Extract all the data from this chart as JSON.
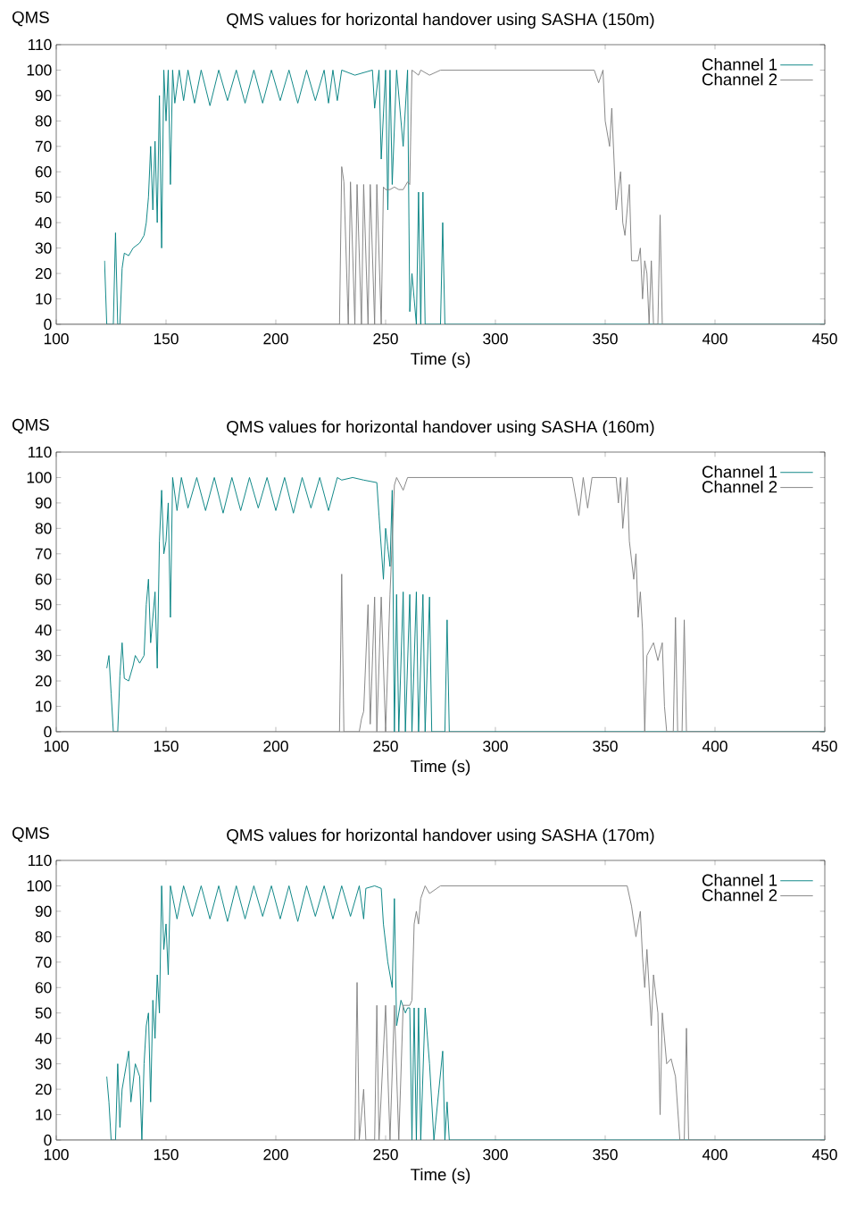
{
  "chart_data": [
    {
      "type": "line",
      "title": "QMS values for horizontal handover using SASHA (150m)",
      "xlabel": "Time (s)",
      "ylabel": "QMS",
      "xlim": [
        100,
        450
      ],
      "ylim": [
        0,
        110
      ],
      "xticks": [
        100,
        150,
        200,
        250,
        300,
        350,
        400,
        450
      ],
      "yticks": [
        0,
        10,
        20,
        30,
        40,
        50,
        60,
        70,
        80,
        90,
        100,
        110
      ],
      "legend": "top right",
      "series": [
        {
          "name": "Channel 1",
          "color": "#008080",
          "x": [
            122,
            123,
            126,
            127,
            128,
            129,
            130,
            131,
            133,
            135,
            138,
            140,
            141,
            142,
            143,
            144,
            145,
            146,
            147,
            148,
            149,
            150,
            151,
            152,
            153,
            154,
            156,
            158,
            160,
            163,
            166,
            170,
            174,
            178,
            182,
            186,
            190,
            194,
            198,
            202,
            206,
            210,
            214,
            218,
            222,
            224,
            226,
            228,
            230,
            233,
            236,
            240,
            244,
            245,
            247,
            248,
            250,
            251,
            252,
            253,
            255,
            258,
            260,
            261,
            262,
            263,
            264,
            265,
            266,
            267,
            268,
            275,
            276,
            277,
            450
          ],
          "values": [
            25,
            0,
            0,
            36,
            0,
            0,
            22,
            28,
            27,
            30,
            32,
            35,
            40,
            50,
            70,
            45,
            72,
            40,
            90,
            30,
            100,
            80,
            100,
            55,
            100,
            87,
            100,
            88,
            100,
            87,
            100,
            86,
            100,
            88,
            100,
            87,
            100,
            87,
            100,
            88,
            100,
            87,
            100,
            88,
            100,
            87,
            100,
            88,
            100,
            99,
            98,
            99,
            100,
            85,
            100,
            65,
            100,
            45,
            100,
            55,
            100,
            70,
            100,
            5,
            20,
            10,
            0,
            52,
            0,
            52,
            0,
            0,
            40,
            0,
            0
          ]
        },
        {
          "name": "Channel 2",
          "color": "#808080",
          "x": [
            100,
            229,
            230,
            231,
            233,
            234,
            236,
            237,
            239,
            240,
            242,
            243,
            245,
            246,
            248,
            249,
            250,
            252,
            254,
            256,
            258,
            260,
            261,
            262,
            265,
            266,
            270,
            275,
            280,
            300,
            320,
            345,
            347,
            349,
            350,
            352,
            353,
            355,
            357,
            358,
            359,
            361,
            362,
            365,
            366,
            367,
            368,
            369,
            370,
            371,
            372,
            374,
            375,
            376,
            450
          ],
          "values": [
            0,
            0,
            62,
            56,
            0,
            56,
            0,
            55,
            0,
            55,
            0,
            55,
            0,
            55,
            0,
            54,
            53,
            53,
            54,
            53,
            53,
            56,
            55,
            100,
            98,
            100,
            98,
            100,
            100,
            100,
            100,
            100,
            95,
            100,
            80,
            70,
            85,
            45,
            60,
            40,
            35,
            55,
            25,
            25,
            30,
            10,
            25,
            20,
            0,
            25,
            0,
            0,
            43,
            0,
            0
          ]
        }
      ]
    },
    {
      "type": "line",
      "title": "QMS values for horizontal handover using SASHA (160m)",
      "xlabel": "Time (s)",
      "ylabel": "QMS",
      "xlim": [
        100,
        450
      ],
      "ylim": [
        0,
        110
      ],
      "xticks": [
        100,
        150,
        200,
        250,
        300,
        350,
        400,
        450
      ],
      "yticks": [
        0,
        10,
        20,
        30,
        40,
        50,
        60,
        70,
        80,
        90,
        100,
        110
      ],
      "legend": "top right",
      "series": [
        {
          "name": "Channel 1",
          "color": "#008080",
          "x": [
            123,
            124,
            125,
            126,
            128,
            129,
            130,
            131,
            133,
            135,
            136,
            138,
            140,
            141,
            142,
            143,
            145,
            146,
            147,
            148,
            149,
            150,
            151,
            152,
            153,
            155,
            157,
            160,
            164,
            168,
            172,
            176,
            180,
            184,
            188,
            192,
            196,
            200,
            204,
            208,
            212,
            216,
            220,
            224,
            228,
            230,
            235,
            240,
            246,
            247,
            249,
            250,
            252,
            253,
            254,
            255,
            256,
            258,
            259,
            261,
            262,
            264,
            265,
            267,
            268,
            270,
            271,
            272,
            277,
            278,
            279,
            450
          ],
          "values": [
            25,
            30,
            15,
            0,
            0,
            22,
            35,
            21,
            20,
            26,
            30,
            27,
            30,
            50,
            60,
            35,
            55,
            25,
            75,
            95,
            70,
            75,
            90,
            45,
            100,
            87,
            100,
            88,
            100,
            87,
            100,
            86,
            100,
            87,
            100,
            88,
            100,
            87,
            100,
            86,
            100,
            88,
            100,
            87,
            100,
            99,
            100,
            99,
            98,
            85,
            60,
            80,
            65,
            95,
            0,
            54,
            0,
            55,
            0,
            54,
            0,
            55,
            0,
            54,
            0,
            53,
            0,
            0,
            0,
            44,
            0,
            0
          ]
        },
        {
          "name": "Channel 2",
          "color": "#808080",
          "x": [
            100,
            229,
            230,
            231,
            238,
            239,
            240,
            242,
            243,
            245,
            246,
            248,
            250,
            252,
            254,
            255,
            258,
            260,
            280,
            300,
            320,
            335,
            338,
            340,
            342,
            344,
            355,
            356,
            357,
            358,
            360,
            361,
            363,
            364,
            365,
            366,
            367,
            368,
            369,
            372,
            374,
            376,
            377,
            378,
            381,
            382,
            383,
            385,
            386,
            387,
            450
          ],
          "values": [
            0,
            0,
            62,
            0,
            0,
            5,
            8,
            50,
            3,
            53,
            0,
            53,
            0,
            54,
            97,
            100,
            95,
            100,
            100,
            100,
            100,
            100,
            85,
            100,
            88,
            100,
            100,
            90,
            100,
            80,
            100,
            75,
            60,
            70,
            45,
            55,
            40,
            0,
            30,
            35,
            28,
            35,
            10,
            0,
            0,
            45,
            0,
            0,
            44,
            0,
            0
          ]
        }
      ]
    },
    {
      "type": "line",
      "title": "QMS values for horizontal handover using SASHA (170m)",
      "xlabel": "Time (s)",
      "ylabel": "QMS",
      "xlim": [
        100,
        450
      ],
      "ylim": [
        0,
        110
      ],
      "xticks": [
        100,
        150,
        200,
        250,
        300,
        350,
        400,
        450
      ],
      "yticks": [
        0,
        10,
        20,
        30,
        40,
        50,
        60,
        70,
        80,
        90,
        100,
        110
      ],
      "legend": "top right",
      "series": [
        {
          "name": "Channel 1",
          "color": "#008080",
          "x": [
            123,
            124,
            125,
            127,
            128,
            129,
            130,
            131,
            133,
            134,
            136,
            138,
            139,
            140,
            141,
            142,
            143,
            144,
            145,
            146,
            147,
            148,
            149,
            150,
            151,
            152,
            155,
            158,
            162,
            166,
            170,
            174,
            178,
            182,
            186,
            190,
            194,
            198,
            202,
            206,
            210,
            214,
            218,
            222,
            226,
            230,
            234,
            238,
            240,
            241,
            245,
            248,
            249,
            251,
            253,
            254,
            255,
            257,
            259,
            260,
            261,
            262,
            263,
            264,
            265,
            266,
            268,
            270,
            272,
            276,
            277,
            278,
            279,
            450
          ],
          "values": [
            25,
            15,
            0,
            0,
            30,
            5,
            20,
            25,
            35,
            15,
            30,
            25,
            0,
            30,
            45,
            50,
            15,
            55,
            40,
            65,
            50,
            100,
            75,
            85,
            65,
            100,
            87,
            100,
            88,
            100,
            87,
            100,
            86,
            100,
            87,
            100,
            88,
            100,
            87,
            100,
            86,
            100,
            88,
            100,
            87,
            100,
            88,
            100,
            87,
            99,
            100,
            99,
            85,
            70,
            60,
            95,
            45,
            55,
            50,
            52,
            52,
            0,
            52,
            0,
            52,
            0,
            52,
            30,
            0,
            35,
            0,
            15,
            0,
            0
          ]
        },
        {
          "name": "Channel 2",
          "color": "#808080",
          "x": [
            100,
            236,
            237,
            238,
            240,
            241,
            245,
            246,
            247,
            250,
            252,
            254,
            256,
            258,
            261,
            262,
            263,
            264,
            265,
            266,
            268,
            270,
            275,
            300,
            330,
            360,
            362,
            364,
            366,
            367,
            368,
            369,
            371,
            372,
            374,
            375,
            376,
            378,
            380,
            382,
            384,
            386,
            387,
            388,
            450
          ],
          "values": [
            0,
            0,
            62,
            0,
            20,
            0,
            0,
            53,
            0,
            53,
            0,
            53,
            0,
            53,
            53,
            55,
            85,
            90,
            85,
            95,
            100,
            97,
            100,
            100,
            100,
            100,
            92,
            80,
            90,
            72,
            60,
            75,
            45,
            65,
            50,
            10,
            50,
            30,
            32,
            25,
            0,
            0,
            44,
            0,
            0
          ]
        }
      ]
    }
  ]
}
